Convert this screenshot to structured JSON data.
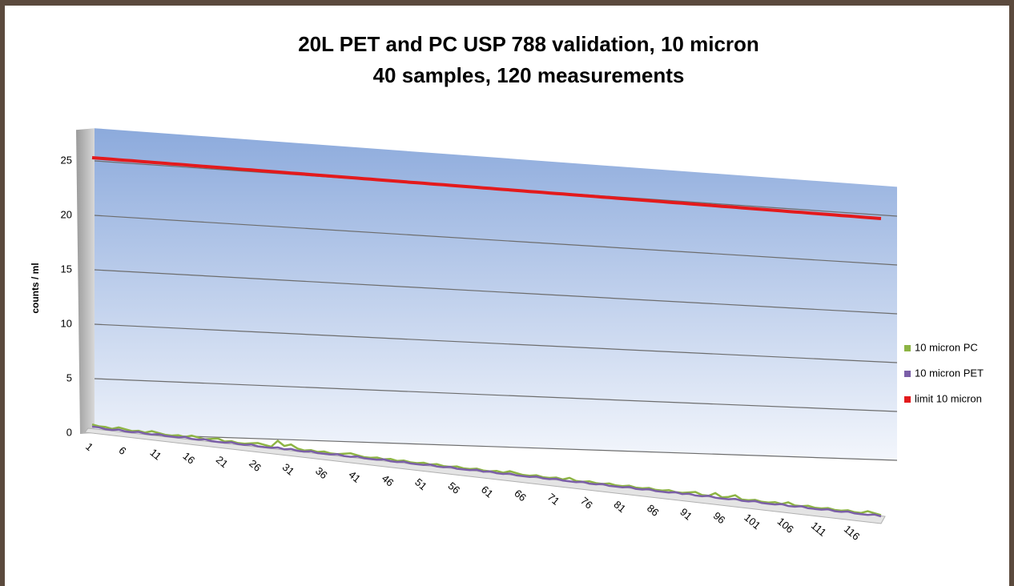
{
  "chart_data": {
    "type": "line3d",
    "title": "20L PET and PC USP 788 validation, 10 micron",
    "subtitle": "40 samples, 120 measurements",
    "y_label": "counts / ml",
    "categories": [
      "1",
      null,
      null,
      null,
      null,
      "6",
      null,
      null,
      null,
      null,
      "11",
      null,
      null,
      null,
      null,
      "16",
      null,
      null,
      null,
      null,
      "21",
      null,
      null,
      null,
      null,
      "26",
      null,
      null,
      null,
      null,
      "31",
      null,
      null,
      null,
      null,
      "36",
      null,
      null,
      null,
      null,
      "41",
      null,
      null,
      null,
      null,
      "46",
      null,
      null,
      null,
      null,
      "51",
      null,
      null,
      null,
      null,
      "56",
      null,
      null,
      null,
      null,
      "61",
      null,
      null,
      null,
      null,
      "66",
      null,
      null,
      null,
      null,
      "71",
      null,
      null,
      null,
      null,
      "76",
      null,
      null,
      null,
      null,
      "81",
      null,
      null,
      null,
      null,
      "86",
      null,
      null,
      null,
      null,
      "91",
      null,
      null,
      null,
      null,
      "96",
      null,
      null,
      null,
      null,
      "101",
      null,
      null,
      null,
      null,
      "106",
      null,
      null,
      null,
      null,
      "111",
      null,
      null,
      null,
      null,
      "116",
      null,
      null,
      null,
      null
    ],
    "series": [
      {
        "name": "10 micron PC",
        "color": "#8db444",
        "values": [
          0.5,
          0.4,
          0.4,
          0.3,
          0.5,
          0.4,
          0.3,
          0.4,
          0.3,
          0.5,
          0.4,
          0.3,
          0.3,
          0.4,
          0.3,
          0.5,
          0.4,
          0.3,
          0.4,
          0.5,
          0.3,
          0.4,
          0.3,
          0.3,
          0.4,
          0.5,
          0.4,
          0.3,
          0.9,
          0.5,
          0.7,
          0.4,
          0.3,
          0.4,
          0.3,
          0.4,
          0.3,
          0.3,
          0.4,
          0.5,
          0.4,
          0.3,
          0.3,
          0.4,
          0.3,
          0.4,
          0.3,
          0.4,
          0.3,
          0.3,
          0.4,
          0.3,
          0.4,
          0.3,
          0.3,
          0.4,
          0.3,
          0.3,
          0.4,
          0.3,
          0.3,
          0.4,
          0.3,
          0.5,
          0.4,
          0.3,
          0.3,
          0.4,
          0.3,
          0.3,
          0.4,
          0.3,
          0.5,
          0.3,
          0.3,
          0.4,
          0.3,
          0.3,
          0.4,
          0.3,
          0.3,
          0.4,
          0.3,
          0.3,
          0.4,
          0.3,
          0.3,
          0.4,
          0.3,
          0.3,
          0.4,
          0.5,
          0.3,
          0.3,
          0.6,
          0.3,
          0.4,
          0.6,
          0.3,
          0.3,
          0.4,
          0.3,
          0.3,
          0.4,
          0.3,
          0.5,
          0.3,
          0.3,
          0.4,
          0.3,
          0.3,
          0.4,
          0.3,
          0.3,
          0.4,
          0.3,
          0.3,
          0.5,
          0.4,
          0.3
        ]
      },
      {
        "name": "10 micron PET",
        "color": "#7b5fa8",
        "values": [
          0.3,
          0.3,
          0.2,
          0.2,
          0.3,
          0.2,
          0.2,
          0.3,
          0.2,
          0.2,
          0.3,
          0.2,
          0.2,
          0.2,
          0.3,
          0.2,
          0.2,
          0.3,
          0.2,
          0.2,
          0.2,
          0.3,
          0.2,
          0.2,
          0.3,
          0.2,
          0.2,
          0.2,
          0.3,
          0.2,
          0.3,
          0.2,
          0.2,
          0.3,
          0.2,
          0.2,
          0.2,
          0.3,
          0.2,
          0.2,
          0.3,
          0.2,
          0.2,
          0.2,
          0.3,
          0.2,
          0.2,
          0.3,
          0.2,
          0.2,
          0.2,
          0.3,
          0.2,
          0.2,
          0.3,
          0.2,
          0.2,
          0.2,
          0.3,
          0.2,
          0.3,
          0.2,
          0.2,
          0.3,
          0.2,
          0.2,
          0.2,
          0.3,
          0.2,
          0.2,
          0.3,
          0.2,
          0.2,
          0.2,
          0.3,
          0.2,
          0.2,
          0.3,
          0.2,
          0.2,
          0.2,
          0.3,
          0.2,
          0.2,
          0.3,
          0.2,
          0.2,
          0.2,
          0.3,
          0.2,
          0.3,
          0.2,
          0.2,
          0.3,
          0.2,
          0.2,
          0.2,
          0.3,
          0.2,
          0.2,
          0.3,
          0.2,
          0.2,
          0.2,
          0.3,
          0.2,
          0.2,
          0.3,
          0.2,
          0.2,
          0.2,
          0.3,
          0.2,
          0.2,
          0.3,
          0.2,
          0.2,
          0.2,
          0.3,
          0.2
        ]
      },
      {
        "name": "limit 10 micron",
        "color": "#e31a1c",
        "values": [
          25,
          25,
          25,
          25,
          25,
          25,
          25,
          25,
          25,
          25,
          25,
          25,
          25,
          25,
          25,
          25,
          25,
          25,
          25,
          25,
          25,
          25,
          25,
          25,
          25,
          25,
          25,
          25,
          25,
          25,
          25,
          25,
          25,
          25,
          25,
          25,
          25,
          25,
          25,
          25,
          25,
          25,
          25,
          25,
          25,
          25,
          25,
          25,
          25,
          25,
          25,
          25,
          25,
          25,
          25,
          25,
          25,
          25,
          25,
          25,
          25,
          25,
          25,
          25,
          25,
          25,
          25,
          25,
          25,
          25,
          25,
          25,
          25,
          25,
          25,
          25,
          25,
          25,
          25,
          25,
          25,
          25,
          25,
          25,
          25,
          25,
          25,
          25,
          25,
          25,
          25,
          25,
          25,
          25,
          25,
          25,
          25,
          25,
          25,
          25,
          25,
          25,
          25,
          25,
          25,
          25,
          25,
          25,
          25,
          25,
          25,
          25,
          25,
          25,
          25,
          25,
          25,
          25,
          25,
          25
        ]
      }
    ],
    "ylim": [
      0,
      28
    ],
    "yticks": [
      0,
      5,
      10,
      15,
      20,
      25
    ],
    "grid": true,
    "legend": "right"
  }
}
